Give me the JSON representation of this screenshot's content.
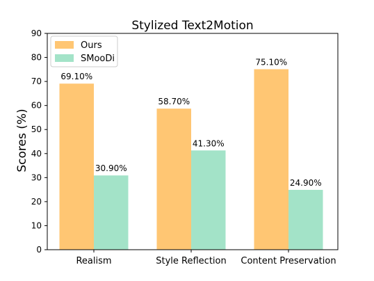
{
  "chart_data": {
    "type": "bar",
    "title": "Stylized Text2Motion",
    "xlabel": "",
    "ylabel": "Scores (%)",
    "ylim": [
      0,
      90
    ],
    "yticks": [
      0,
      10,
      20,
      30,
      40,
      50,
      60,
      70,
      80,
      90
    ],
    "categories": [
      "Realism",
      "Style Reflection",
      "Content Preservation"
    ],
    "series": [
      {
        "name": "Ours",
        "color": "#FFC673",
        "values": [
          69.1,
          58.7,
          75.1
        ],
        "labels": [
          "69.10%",
          "58.70%",
          "75.10%"
        ]
      },
      {
        "name": "SMooDi",
        "color": "#A3E3C8",
        "values": [
          30.9,
          41.3,
          24.9
        ],
        "labels": [
          "30.90%",
          "41.30%",
          "24.90%"
        ]
      }
    ],
    "grid": false,
    "legend": "top-left"
  }
}
